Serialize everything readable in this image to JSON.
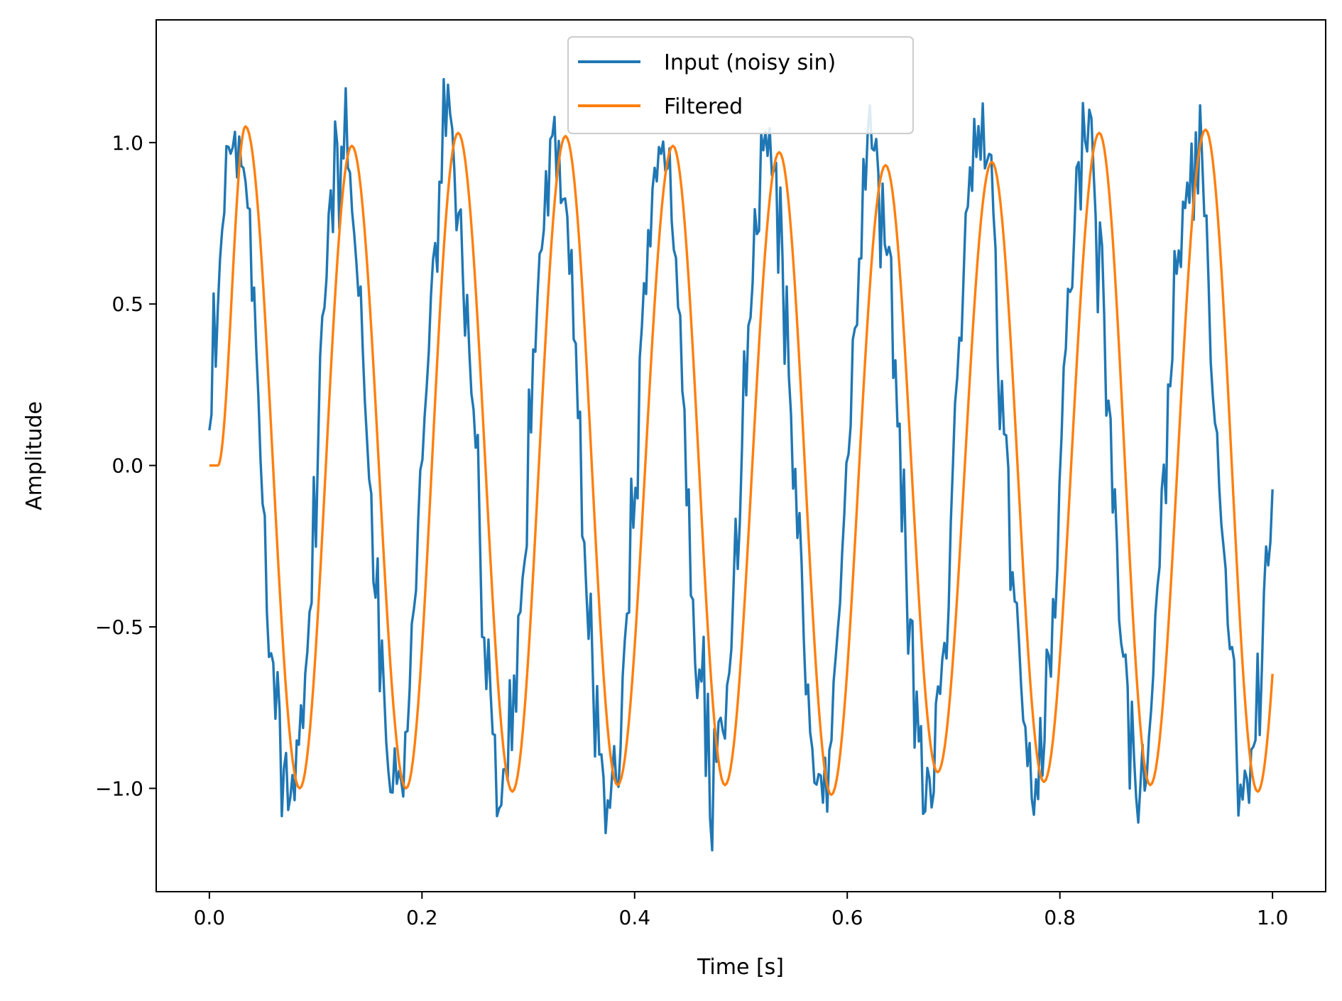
{
  "chart_data": {
    "type": "line",
    "title": "",
    "xlabel": "Time [s]",
    "ylabel": "Amplitude",
    "xlim": [
      -0.05,
      1.05
    ],
    "ylim": [
      -1.32,
      1.38
    ],
    "grid": false,
    "legend_position": "top-center",
    "x_ticks": [
      0.0,
      0.2,
      0.4,
      0.6,
      0.8,
      1.0
    ],
    "x_tick_labels": [
      "0.0",
      "0.2",
      "0.4",
      "0.6",
      "0.8",
      "1.0"
    ],
    "y_ticks": [
      -1.0,
      -0.5,
      0.0,
      0.5,
      1.0
    ],
    "y_tick_labels": [
      "−1.0",
      "−0.5",
      "0.0",
      "0.5",
      "1.0"
    ],
    "series": [
      {
        "name": "Input (noisy sin)",
        "color": "#1f77b4",
        "description": "10 Hz sine wave with additive random noise, 500 samples over 0-1 s",
        "frequency_hz": 10,
        "amplitude": 1.0,
        "noise_std": 0.1,
        "x_start": 0.0,
        "x_end": 1.0,
        "samples": 500
      },
      {
        "name": "Filtered",
        "color": "#ff7f0e",
        "description": "Low-pass filtered output, starts at 0 and lags the input slightly",
        "frequency_hz": 10,
        "peak_x": [
          0.034,
          0.134,
          0.234,
          0.335,
          0.436,
          0.536,
          0.636,
          0.736,
          0.837,
          0.937
        ],
        "peak_y": [
          1.05,
          0.99,
          1.03,
          1.02,
          0.99,
          0.97,
          0.93,
          0.94,
          1.03,
          1.04
        ],
        "trough_x": [
          0.085,
          0.185,
          0.285,
          0.384,
          0.485,
          0.585,
          0.685,
          0.785,
          0.885,
          0.986
        ],
        "trough_y": [
          -1.0,
          -1.0,
          -1.01,
          -0.99,
          -0.99,
          -1.02,
          -0.95,
          -0.98,
          -0.99,
          -1.01
        ],
        "end_value": -0.62
      }
    ]
  }
}
